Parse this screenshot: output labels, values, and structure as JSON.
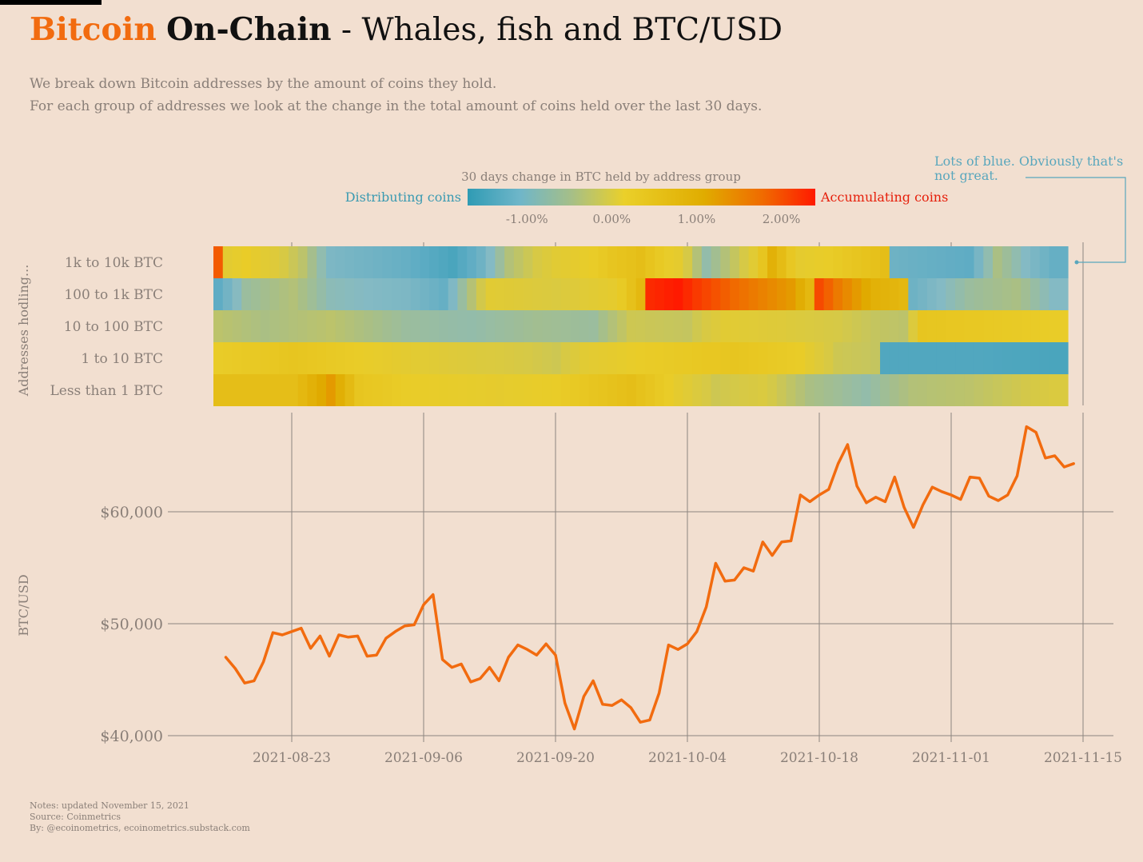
{
  "header": {
    "title_brand": "Bitcoin",
    "title_series": "On-Chain",
    "title_rest": " - Whales, fish and BTC/USD",
    "subtitle_line1": "We break down Bitcoin addresses by the amount of coins they hold.",
    "subtitle_line2": "For each group of addresses we look at the change in the total amount of coins held over the last 30 days."
  },
  "annotation": "Lots of blue. Obviously that's not great.",
  "notes": {
    "updated": "Notes: updated November 15, 2021",
    "source": "Source: Coinmetrics",
    "by": "By: @ecoinometrics, ecoinometrics.substack.com"
  },
  "colors": {
    "background": "#f2dfd0",
    "brand": "#f26b0f",
    "line": "#f26b0f",
    "distributing": "#2f9bb4",
    "accumulating": "#ff1a00",
    "annotation": "#5aa7bd"
  },
  "chart_data": [
    {
      "type": "heatmap",
      "title": "30 days change in BTC held by address group",
      "legend_low_label": "Distributing coins",
      "legend_high_label": "Accumulating coins",
      "legend_ticks": [
        "-1.00%",
        "0.00%",
        "1.00%",
        "2.00%"
      ],
      "legend_tick_values": [
        -1.0,
        0.0,
        1.0,
        2.0
      ],
      "color_range": [
        -1.7,
        2.4
      ],
      "ylabel": "Addresses hodling...",
      "rows": [
        "1k to 10k BTC",
        "100 to 1k BTC",
        "10 to 100 BTC",
        "1 to 10 BTC",
        "Less than 1 BTC"
      ],
      "x_start": "2021-08-16",
      "x_end": "2021-11-14",
      "keyframes": [
        [
          [
            0,
            2.0
          ],
          [
            1,
            0.85
          ],
          [
            3,
            1.0
          ],
          [
            6,
            0.7
          ],
          [
            9,
            0.2
          ],
          [
            12,
            -0.6
          ],
          [
            20,
            -0.9
          ],
          [
            25,
            -1.3
          ],
          [
            28,
            -0.8
          ],
          [
            31,
            0.1
          ],
          [
            36,
            0.8
          ],
          [
            42,
            1.1
          ],
          [
            45,
            1.2
          ],
          [
            49,
            0.9
          ],
          [
            52,
            -0.3
          ],
          [
            56,
            0.5
          ],
          [
            59,
            1.4
          ],
          [
            62,
            0.9
          ],
          [
            65,
            1.0
          ],
          [
            71,
            1.2
          ],
          [
            72,
            -0.8
          ],
          [
            80,
            -1.0
          ],
          [
            83,
            0.0
          ],
          [
            86,
            -0.5
          ],
          [
            89,
            -0.9
          ]
        ],
        [
          [
            0,
            -1.0
          ],
          [
            3,
            -0.2
          ],
          [
            8,
            0.1
          ],
          [
            12,
            -0.4
          ],
          [
            20,
            -0.6
          ],
          [
            24,
            -0.9
          ],
          [
            29,
            0.8
          ],
          [
            36,
            0.6
          ],
          [
            42,
            0.9
          ],
          [
            45,
            1.3
          ],
          [
            46,
            2.3
          ],
          [
            49,
            2.4
          ],
          [
            51,
            2.2
          ],
          [
            55,
            1.9
          ],
          [
            61,
            1.6
          ],
          [
            63,
            1.3
          ],
          [
            64,
            2.1
          ],
          [
            66,
            1.8
          ],
          [
            70,
            1.4
          ],
          [
            73,
            1.3
          ],
          [
            74,
            -0.8
          ],
          [
            80,
            -0.2
          ],
          [
            85,
            0.0
          ],
          [
            89,
            -0.5
          ]
        ],
        [
          [
            0,
            0.2
          ],
          [
            5,
            0.0
          ],
          [
            12,
            0.2
          ],
          [
            20,
            -0.2
          ],
          [
            27,
            -0.3
          ],
          [
            34,
            -0.1
          ],
          [
            40,
            -0.2
          ],
          [
            44,
            0.4
          ],
          [
            50,
            0.3
          ],
          [
            54,
            0.8
          ],
          [
            60,
            0.7
          ],
          [
            66,
            0.5
          ],
          [
            70,
            0.3
          ],
          [
            73,
            0.2
          ],
          [
            75,
            1.1
          ],
          [
            89,
            1.0
          ]
        ],
        [
          [
            0,
            1.0
          ],
          [
            8,
            1.1
          ],
          [
            15,
            1.0
          ],
          [
            25,
            0.7
          ],
          [
            30,
            0.6
          ],
          [
            36,
            0.4
          ],
          [
            39,
            0.8
          ],
          [
            45,
            1.0
          ],
          [
            55,
            1.1
          ],
          [
            62,
            1.0
          ],
          [
            66,
            0.4
          ],
          [
            70,
            0.3
          ],
          [
            71,
            -1.2
          ],
          [
            80,
            -1.2
          ],
          [
            89,
            -1.3
          ]
        ],
        [
          [
            0,
            1.2
          ],
          [
            8,
            1.2
          ],
          [
            12,
            1.6
          ],
          [
            15,
            1.1
          ],
          [
            20,
            1.0
          ],
          [
            30,
            0.9
          ],
          [
            36,
            1.0
          ],
          [
            44,
            1.2
          ],
          [
            48,
            1.0
          ],
          [
            53,
            0.4
          ],
          [
            58,
            0.6
          ],
          [
            63,
            0.0
          ],
          [
            69,
            -0.3
          ],
          [
            74,
            0.1
          ],
          [
            80,
            0.2
          ],
          [
            89,
            0.6
          ]
        ]
      ]
    },
    {
      "type": "line",
      "xlabel": "",
      "ylabel": "BTC/USD",
      "ylim": [
        40000,
        70000
      ],
      "yticks": [
        40000,
        50000,
        60000
      ],
      "ytick_labels": [
        "$40,000",
        "$50,000",
        "$60,000"
      ],
      "xtick_labels": [
        "2021-08-23",
        "2021-09-06",
        "2021-09-20",
        "2021-10-04",
        "2021-10-18",
        "2021-11-01",
        "2021-11-15"
      ],
      "x_start": "2021-08-16",
      "x_end": "2021-11-14",
      "series": [
        {
          "values": [
            47000,
            46000,
            44700,
            44900,
            46600,
            49200,
            49000,
            49300,
            49600,
            47800,
            48900,
            47100,
            49000,
            48800,
            48900,
            47100,
            47200,
            48700,
            49300,
            49800,
            49900,
            51700,
            52600,
            46800,
            46100,
            46400,
            44800,
            45100,
            46100,
            44900,
            47000,
            48100,
            47700,
            47200,
            48200,
            47200,
            42900,
            40600,
            43500,
            44900,
            42800,
            42700,
            43200,
            42500,
            41200,
            41400,
            43800,
            48100,
            47700,
            48200,
            49300,
            51500,
            55400,
            53800,
            53900,
            55000,
            54700,
            57300,
            56100,
            57300,
            57400,
            61500,
            60900,
            61500,
            62000,
            64300,
            66000,
            62300,
            60800,
            61300,
            60900,
            63100,
            60400,
            58600,
            60600,
            62200,
            61800,
            61500,
            61100,
            63100,
            63000,
            61400,
            61000,
            61500,
            63200,
            67600,
            67100,
            64800,
            65000,
            64000,
            64300
          ]
        }
      ]
    }
  ]
}
